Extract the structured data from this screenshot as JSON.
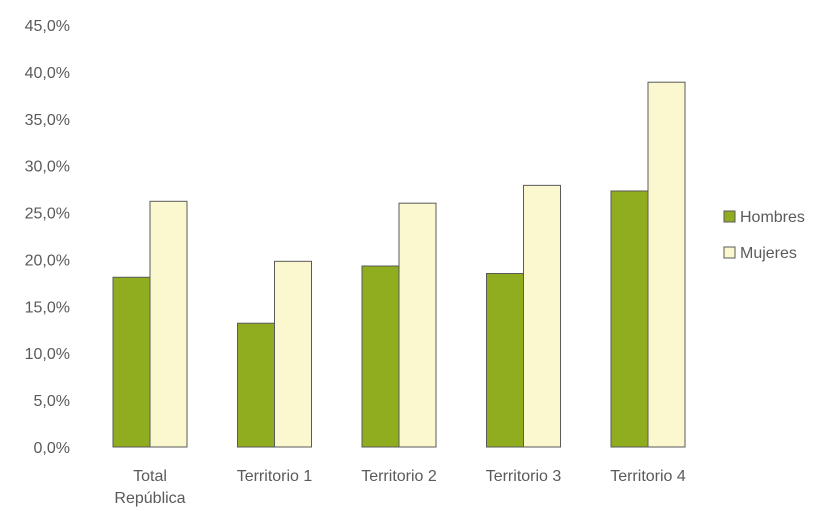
{
  "chart_data": {
    "type": "bar",
    "categories": [
      [
        "Total",
        "República"
      ],
      [
        "Territorio 1"
      ],
      [
        "Territorio 2"
      ],
      [
        "Territorio 3"
      ],
      [
        "Territorio 4"
      ]
    ],
    "series": [
      {
        "name": "Hombres",
        "values": [
          18.1,
          13.2,
          19.3,
          18.5,
          27.3
        ],
        "color": "#8fad1f"
      },
      {
        "name": "Mujeres",
        "values": [
          26.2,
          19.8,
          26.0,
          27.9,
          38.9
        ],
        "color": "#fbf8cf"
      }
    ],
    "ylim": [
      0,
      45
    ],
    "yticks": [
      "0,0%",
      "5,0%",
      "10,0%",
      "15,0%",
      "20,0%",
      "25,0%",
      "30,0%",
      "35,0%",
      "40,0%",
      "45,0%"
    ],
    "grid": false,
    "legend_position": "right",
    "bar_outline": "#5a5a5a"
  }
}
